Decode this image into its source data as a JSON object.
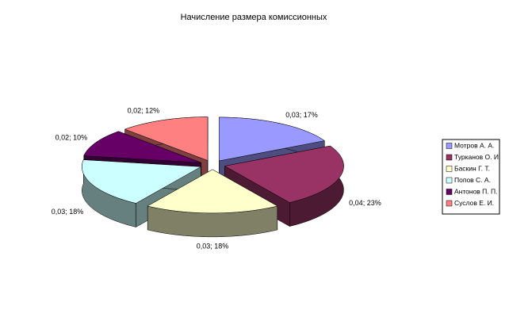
{
  "chart_data": {
    "type": "pie3d",
    "title": "Начисление размера комиссионных",
    "categories": [
      "Мотров А. А.",
      "Турканов О. И.",
      "Баскин Г. Т.",
      "Попов С. А.",
      "Антонов П. П.",
      "Суслов Е. И."
    ],
    "values": [
      17,
      23,
      18,
      18,
      10,
      12
    ],
    "value_labels": [
      "0,03; 17%",
      "0,04; 23%",
      "0,03; 18%",
      "0,03; 18%",
      "0,02; 10%",
      "0,02; 12%"
    ],
    "colors": [
      "#9999ff",
      "#993366",
      "#ffffcc",
      "#ccffff",
      "#660066",
      "#ff8080"
    ],
    "legend": "right"
  }
}
